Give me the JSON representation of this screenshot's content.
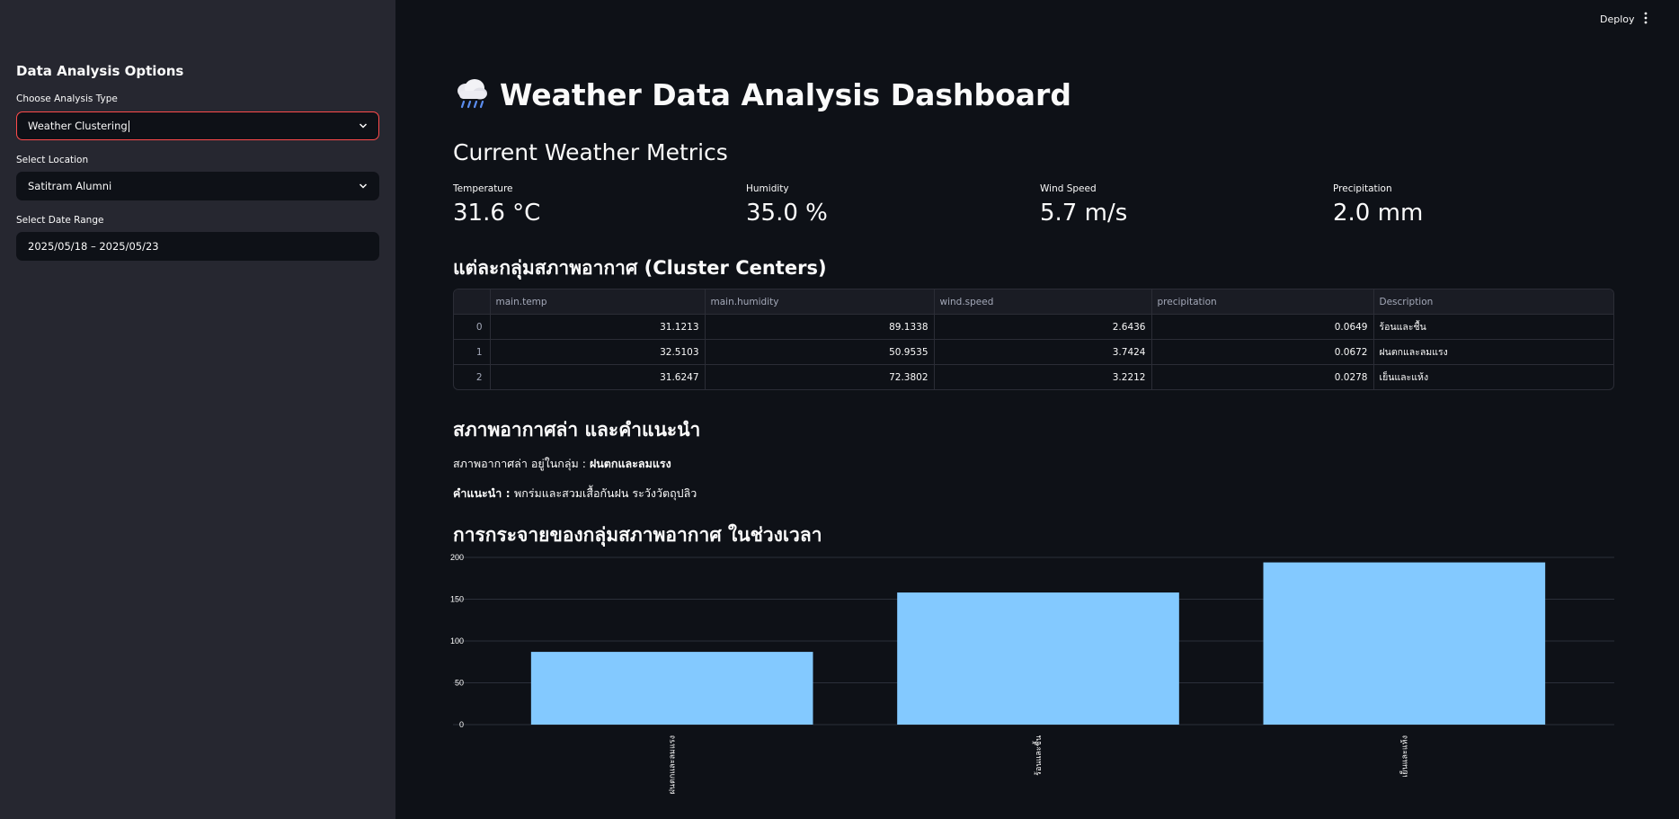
{
  "sidebar": {
    "title": "Data Analysis Options",
    "analysis_type": {
      "label": "Choose Analysis Type",
      "value": "Weather Clustering"
    },
    "location": {
      "label": "Select Location",
      "value": "Satitram Alumni"
    },
    "date_range": {
      "label": "Select Date Range",
      "value": "2025/05/18 – 2025/05/23"
    },
    "caret_icon": "chevron-down-icon"
  },
  "header": {
    "deploy_label": "Deploy",
    "menu_icon": "more-vertical-icon"
  },
  "main": {
    "title": "Weather Data Analysis Dashboard",
    "title_icon": "cloud-rain-icon",
    "metrics_heading": "Current Weather Metrics",
    "metrics": [
      {
        "label": "Temperature",
        "value": "31.6 °C"
      },
      {
        "label": "Humidity",
        "value": "35.0 %"
      },
      {
        "label": "Wind Speed",
        "value": "5.7 m/s"
      },
      {
        "label": "Precipitation",
        "value": "2.0 mm"
      }
    ],
    "cluster_heading": "แต่ละกลุ่มสภาพอากาศ (Cluster Centers)",
    "cluster_table": {
      "columns": [
        "main.temp",
        "main.humidity",
        "wind.speed",
        "precipitation",
        "Description"
      ],
      "rows": [
        {
          "index": "0",
          "cells": [
            "31.1213",
            "89.1338",
            "2.6436",
            "0.0649"
          ],
          "description": "ร้อนและชื้น"
        },
        {
          "index": "1",
          "cells": [
            "32.5103",
            "50.9535",
            "3.7424",
            "0.0672"
          ],
          "description": "ฝนตกและลมแรง"
        },
        {
          "index": "2",
          "cells": [
            "31.6247",
            "72.3802",
            "3.2212",
            "0.0278"
          ],
          "description": "เย็นและแห้ง"
        }
      ]
    },
    "recommend_heading": "สภาพอากาศล่า และคำแนะนำ",
    "current_cluster_prefix": "สภาพอากาศล่า อยู่ในกลุ่ม : ",
    "current_cluster_value": "ฝนตกและลมแรง",
    "advice_label": "คำแนะนำ : ",
    "advice_text": "พกร่มและสวมเสื้อกันฝน ระวังวัตถุปลิว",
    "distribution_heading": "การกระจายของกลุ่มสภาพอากาศ ในช่วงเวลา"
  },
  "chart_data": {
    "type": "bar",
    "categories": [
      "ฝนตกและลมแรง",
      "ร้อนและชื้น",
      "เย็นและแห้ง"
    ],
    "values": [
      87,
      158,
      194
    ],
    "ylim": [
      0,
      200
    ],
    "yticks": [
      0,
      50,
      100,
      150,
      200
    ],
    "grid": true,
    "bar_color": "#83c9ff"
  },
  "colors": {
    "accent": "#ff4b4b",
    "background": "#0e1117",
    "sidebar": "#262730"
  }
}
